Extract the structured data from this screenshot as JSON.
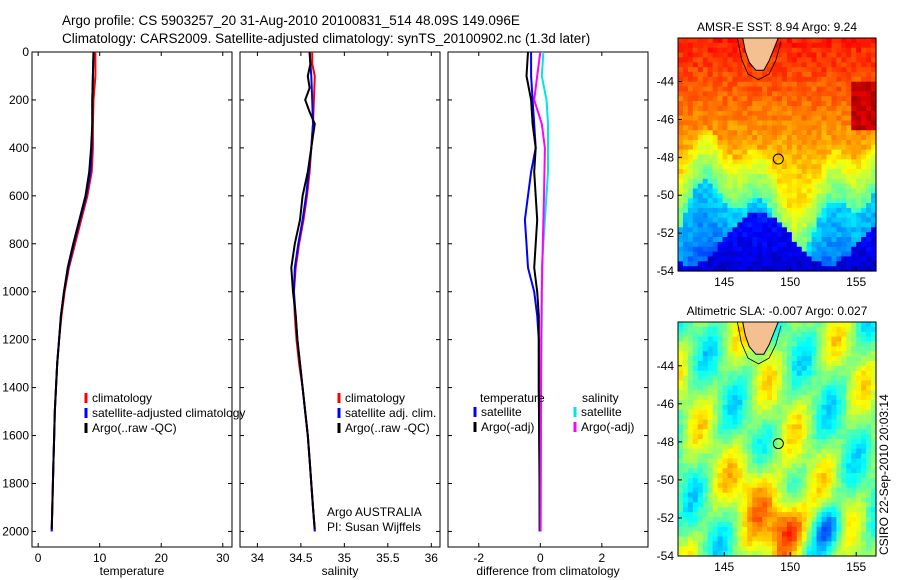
{
  "header": {
    "line1": "Argo profile: CS 5903257_20 31-Aug-2010 20100831_514 48.09S 149.096E",
    "line2": "Climatology: CARS2009. Satellite-adjusted climatology: synTS_20100902.nc (1.3d later)"
  },
  "side_label": "CSIRO 22-Sep-2010 20:03:14",
  "chart_data": [
    {
      "type": "line",
      "xlabel": "temperature",
      "xlim": [
        -1,
        31.5
      ],
      "xticks": [
        0,
        10,
        20,
        30
      ],
      "xtick_labels": [
        "0",
        "10",
        "20",
        "30"
      ],
      "ylim": [
        0,
        2065
      ],
      "yticks": [
        0,
        200,
        400,
        600,
        800,
        1000,
        1200,
        1400,
        1600,
        1800,
        2000
      ],
      "ytick_labels": [
        "0",
        "200",
        "400",
        "600",
        "800",
        "1000",
        "1200",
        "1400",
        "1600",
        "1800",
        "2000"
      ],
      "y_reversed": true,
      "legend": [
        "climatology",
        "satellite-adjusted climatology",
        "Argo(..raw -QC)"
      ],
      "series": [
        {
          "name": "climatology",
          "color": "#ff0000",
          "points": [
            [
              9.3,
              0
            ],
            [
              9.3,
              100
            ],
            [
              9.0,
              200
            ],
            [
              8.9,
              300
            ],
            [
              8.9,
              400
            ],
            [
              8.7,
              500
            ],
            [
              8.0,
              600
            ],
            [
              7.0,
              700
            ],
            [
              6.0,
              800
            ],
            [
              5.0,
              900
            ],
            [
              4.3,
              1000
            ],
            [
              3.8,
              1100
            ],
            [
              3.4,
              1200
            ],
            [
              3.1,
              1300
            ],
            [
              2.9,
              1400
            ],
            [
              2.7,
              1500
            ],
            [
              2.6,
              1600
            ],
            [
              2.5,
              1700
            ],
            [
              2.4,
              1800
            ],
            [
              2.3,
              1900
            ],
            [
              2.2,
              2000
            ]
          ]
        },
        {
          "name": "satellite-adjusted climatology",
          "color": "#0000ff",
          "points": [
            [
              9.0,
              0
            ],
            [
              8.9,
              100
            ],
            [
              8.8,
              200
            ],
            [
              8.8,
              300
            ],
            [
              8.7,
              400
            ],
            [
              8.5,
              500
            ],
            [
              7.8,
              600
            ],
            [
              6.8,
              700
            ],
            [
              5.8,
              800
            ],
            [
              4.9,
              900
            ],
            [
              4.2,
              1000
            ],
            [
              3.7,
              1100
            ],
            [
              3.4,
              1200
            ],
            [
              3.1,
              1300
            ],
            [
              2.9,
              1400
            ],
            [
              2.7,
              1500
            ],
            [
              2.6,
              1600
            ],
            [
              2.5,
              1700
            ],
            [
              2.4,
              1800
            ],
            [
              2.3,
              1900
            ],
            [
              2.2,
              2000
            ]
          ]
        },
        {
          "name": "Argo(..raw -QC)",
          "color": "#000000",
          "points": [
            [
              9.0,
              0
            ],
            [
              8.9,
              100
            ],
            [
              8.8,
              200
            ],
            [
              8.8,
              300
            ],
            [
              8.6,
              400
            ],
            [
              8.3,
              500
            ],
            [
              7.7,
              600
            ],
            [
              6.7,
              700
            ],
            [
              5.7,
              800
            ],
            [
              4.8,
              900
            ],
            [
              4.2,
              1000
            ],
            [
              3.7,
              1100
            ],
            [
              3.4,
              1200
            ],
            [
              3.1,
              1300
            ],
            [
              2.9,
              1400
            ],
            [
              2.7,
              1500
            ],
            [
              2.6,
              1600
            ],
            [
              2.5,
              1700
            ],
            [
              2.4,
              1800
            ],
            [
              2.3,
              1900
            ],
            [
              2.2,
              1990
            ]
          ]
        }
      ]
    },
    {
      "type": "line",
      "xlabel": "salinity",
      "xlim": [
        33.8,
        36.1
      ],
      "xticks": [
        34,
        34.5,
        35,
        35.5,
        36
      ],
      "xtick_labels": [
        "34",
        "34.5",
        "35",
        "35.5",
        "36"
      ],
      "ylim": [
        0,
        2065
      ],
      "y_reversed": true,
      "legend": [
        "climatology",
        "satellite adj. clim.",
        "Argo(..raw -QC)"
      ],
      "annotations": [
        "Argo AUSTRALIA",
        "PI: Susan Wijffels"
      ],
      "series": [
        {
          "name": "climatology",
          "color": "#ff0000",
          "points": [
            [
              34.63,
              0
            ],
            [
              34.63,
              50
            ],
            [
              34.66,
              100
            ],
            [
              34.65,
              200
            ],
            [
              34.64,
              300
            ],
            [
              34.62,
              400
            ],
            [
              34.6,
              500
            ],
            [
              34.57,
              600
            ],
            [
              34.53,
              700
            ],
            [
              34.48,
              800
            ],
            [
              34.44,
              900
            ],
            [
              34.42,
              1000
            ],
            [
              34.43,
              1100
            ],
            [
              34.45,
              1200
            ],
            [
              34.48,
              1300
            ],
            [
              34.52,
              1400
            ],
            [
              34.55,
              1500
            ],
            [
              34.58,
              1600
            ],
            [
              34.6,
              1700
            ],
            [
              34.62,
              1800
            ],
            [
              34.64,
              1900
            ],
            [
              34.66,
              2000
            ]
          ]
        },
        {
          "name": "satellite adj. clim.",
          "color": "#0000ff",
          "points": [
            [
              34.6,
              0
            ],
            [
              34.61,
              50
            ],
            [
              34.62,
              100
            ],
            [
              34.63,
              200
            ],
            [
              34.64,
              300
            ],
            [
              34.62,
              400
            ],
            [
              34.59,
              500
            ],
            [
              34.56,
              600
            ],
            [
              34.52,
              700
            ],
            [
              34.47,
              800
            ],
            [
              34.43,
              900
            ],
            [
              34.42,
              1000
            ],
            [
              34.44,
              1100
            ],
            [
              34.46,
              1200
            ],
            [
              34.49,
              1300
            ],
            [
              34.52,
              1400
            ],
            [
              34.55,
              1500
            ],
            [
              34.58,
              1600
            ],
            [
              34.6,
              1700
            ],
            [
              34.62,
              1800
            ],
            [
              34.64,
              1900
            ],
            [
              34.66,
              2000
            ]
          ]
        },
        {
          "name": "Argo(..raw -QC)",
          "color": "#000000",
          "points": [
            [
              34.6,
              0
            ],
            [
              34.61,
              50
            ],
            [
              34.58,
              100
            ],
            [
              34.6,
              150
            ],
            [
              34.55,
              200
            ],
            [
              34.6,
              250
            ],
            [
              34.66,
              300
            ],
            [
              34.64,
              350
            ],
            [
              34.62,
              400
            ],
            [
              34.58,
              500
            ],
            [
              34.52,
              600
            ],
            [
              34.49,
              700
            ],
            [
              34.43,
              800
            ],
            [
              34.39,
              900
            ],
            [
              34.41,
              1000
            ],
            [
              34.44,
              1100
            ],
            [
              34.46,
              1200
            ],
            [
              34.49,
              1300
            ],
            [
              34.52,
              1400
            ],
            [
              34.55,
              1500
            ],
            [
              34.58,
              1600
            ],
            [
              34.6,
              1700
            ],
            [
              34.62,
              1800
            ],
            [
              34.64,
              1900
            ],
            [
              34.66,
              1990
            ]
          ]
        }
      ]
    },
    {
      "type": "line",
      "xlabel": "difference from climatology",
      "xlim": [
        -3,
        3.5
      ],
      "xticks": [
        -2,
        0,
        2
      ],
      "xtick_labels": [
        "-2",
        "0",
        "2"
      ],
      "ylim": [
        0,
        2065
      ],
      "y_reversed": true,
      "legend": {
        "temperature_header": "temperature",
        "salinity_header": "salinity",
        "entries": [
          "satellite",
          "Argo(-adj)",
          "satellite",
          "Argo(-adj)"
        ]
      },
      "series": [
        {
          "name": "temperature satellite",
          "color": "#0000ff",
          "points": [
            [
              -0.3,
              0
            ],
            [
              -0.3,
              100
            ],
            [
              -0.25,
              200
            ],
            [
              -0.2,
              300
            ],
            [
              -0.15,
              400
            ],
            [
              -0.3,
              500
            ],
            [
              -0.4,
              600
            ],
            [
              -0.5,
              700
            ],
            [
              -0.45,
              800
            ],
            [
              -0.4,
              900
            ],
            [
              -0.2,
              1000
            ],
            [
              -0.1,
              1100
            ],
            [
              -0.05,
              1200
            ],
            [
              -0.05,
              1400
            ],
            [
              -0.03,
              1700
            ],
            [
              -0.02,
              2000
            ]
          ]
        },
        {
          "name": "temperature Argo(-adj)",
          "color": "#000000",
          "points": [
            [
              -0.4,
              0
            ],
            [
              -0.45,
              100
            ],
            [
              -0.3,
              200
            ],
            [
              -0.25,
              300
            ],
            [
              -0.15,
              400
            ],
            [
              -0.2,
              500
            ],
            [
              -0.15,
              600
            ],
            [
              -0.1,
              700
            ],
            [
              -0.15,
              800
            ],
            [
              -0.2,
              900
            ],
            [
              -0.1,
              1000
            ],
            [
              -0.05,
              1100
            ],
            [
              -0.05,
              1200
            ],
            [
              -0.05,
              1400
            ],
            [
              -0.03,
              1700
            ],
            [
              -0.02,
              2000
            ]
          ]
        },
        {
          "name": "salinity satellite",
          "color": "#00e5e5",
          "points": [
            [
              0.1,
              0
            ],
            [
              0.05,
              100
            ],
            [
              0.2,
              200
            ],
            [
              0.25,
              300
            ],
            [
              0.25,
              500
            ],
            [
              0.15,
              700
            ],
            [
              0.05,
              900
            ],
            [
              0.05,
              1100
            ],
            [
              0.03,
              1400
            ],
            [
              0.01,
              2000
            ]
          ]
        },
        {
          "name": "salinity Argo(-adj)",
          "color": "#ff00ff",
          "points": [
            [
              0.0,
              0
            ],
            [
              -0.1,
              100
            ],
            [
              -0.2,
              200
            ],
            [
              0.05,
              300
            ],
            [
              0.15,
              400
            ],
            [
              0.12,
              600
            ],
            [
              0.08,
              800
            ],
            [
              0.05,
              1000
            ],
            [
              0.03,
              1200
            ],
            [
              0.02,
              1500
            ],
            [
              0.01,
              2000
            ]
          ]
        }
      ]
    },
    {
      "type": "heatmap",
      "title": "AMSR-E SST: 8.94 Argo: 9.24",
      "xlim": [
        141.5,
        156.5
      ],
      "ylim": [
        -54,
        -41.7
      ],
      "xticks": [
        145,
        150,
        155
      ],
      "xtick_labels": [
        "145",
        "150",
        "155"
      ],
      "yticks": [
        -44,
        -46,
        -48,
        -50,
        -52,
        -54
      ],
      "ytick_labels": [
        "-44",
        "-46",
        "-48",
        "-50",
        "-52",
        "-54"
      ],
      "marker": {
        "lon": 149.1,
        "lat": -48.09
      }
    },
    {
      "type": "heatmap",
      "title": "Altimetric SLA: -0.007 Argo: 0.027",
      "xlim": [
        141.5,
        156.5
      ],
      "ylim": [
        -54,
        -41.7
      ],
      "xticks": [
        145,
        150,
        155
      ],
      "xtick_labels": [
        "145",
        "150",
        "155"
      ],
      "yticks": [
        -44,
        -46,
        -48,
        -50,
        -52,
        -54
      ],
      "ytick_labels": [
        "-44",
        "-46",
        "-48",
        "-50",
        "-52",
        "-54"
      ],
      "marker": {
        "lon": 149.1,
        "lat": -48.09
      }
    }
  ]
}
